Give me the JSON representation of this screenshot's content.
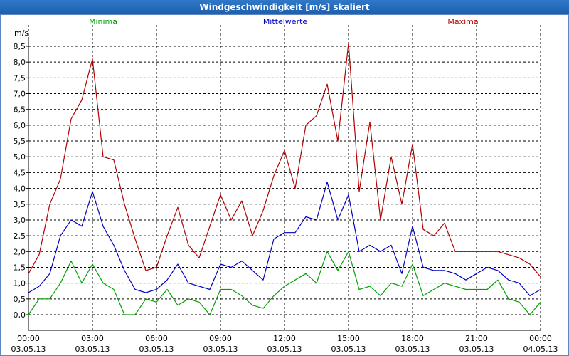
{
  "window": {
    "title": "Windgeschwindigkeit [m/s] skaliert"
  },
  "colors": {
    "minima": "#00a000",
    "mittelwerte": "#0000c0",
    "maxima": "#b00000",
    "grid": "#000000"
  },
  "chart_data": {
    "type": "line",
    "title": "Windgeschwindigkeit [m/s] skaliert",
    "ylabel": "m/s",
    "xlabel": "",
    "ylim": [
      0,
      8.5
    ],
    "yticks": [
      "0,0",
      "0,5",
      "1,0",
      "1,5",
      "2,0",
      "2,5",
      "3,0",
      "3,5",
      "4,0",
      "4,5",
      "5,0",
      "5,5",
      "6,0",
      "6,5",
      "7,0",
      "7,5",
      "8,0",
      "8,5"
    ],
    "xticks": [
      {
        "time": "00:00",
        "date": "03.05.13"
      },
      {
        "time": "03:00",
        "date": "03.05.13"
      },
      {
        "time": "06:00",
        "date": "03.05.13"
      },
      {
        "time": "09:00",
        "date": "03.05.13"
      },
      {
        "time": "12:00",
        "date": "03.05.13"
      },
      {
        "time": "15:00",
        "date": "03.05.13"
      },
      {
        "time": "18:00",
        "date": "03.05.13"
      },
      {
        "time": "21:00",
        "date": "03.05.13"
      },
      {
        "time": "00:00",
        "date": "04.05.13"
      }
    ],
    "grid": true,
    "legend_position": "top",
    "series": [
      {
        "name": "Minima",
        "x": [
          "00:00",
          "00:30",
          "01:00",
          "01:30",
          "02:00",
          "02:30",
          "03:00",
          "03:30",
          "04:00",
          "04:30",
          "05:00",
          "05:30",
          "06:00",
          "06:30",
          "07:00",
          "07:30",
          "08:00",
          "08:30",
          "09:00",
          "09:30",
          "10:00",
          "10:30",
          "11:00",
          "11:30",
          "12:00",
          "12:30",
          "13:00",
          "13:30",
          "14:00",
          "14:30",
          "15:00",
          "15:30",
          "16:00",
          "16:30",
          "17:00",
          "17:30",
          "18:00",
          "18:30",
          "19:00",
          "19:30",
          "20:00",
          "20:30",
          "21:00",
          "21:30",
          "22:00",
          "22:30",
          "23:00",
          "23:30",
          "24:00"
        ],
        "values": [
          0.0,
          0.5,
          0.5,
          1.0,
          1.7,
          1.0,
          1.6,
          1.0,
          0.8,
          0.0,
          0.0,
          0.5,
          0.4,
          0.8,
          0.3,
          0.5,
          0.4,
          0.0,
          0.8,
          0.8,
          0.6,
          0.3,
          0.2,
          0.6,
          0.9,
          1.1,
          1.3,
          1.0,
          2.0,
          1.4,
          2.0,
          0.8,
          0.9,
          0.6,
          1.0,
          0.9,
          1.6,
          0.6,
          0.8,
          1.0,
          0.9,
          0.8,
          0.8,
          0.8,
          1.1,
          0.5,
          0.4,
          0.0,
          0.4
        ]
      },
      {
        "name": "Mittelwerte",
        "x": [
          "00:00",
          "00:30",
          "01:00",
          "01:30",
          "02:00",
          "02:30",
          "03:00",
          "03:30",
          "04:00",
          "04:30",
          "05:00",
          "05:30",
          "06:00",
          "06:30",
          "07:00",
          "07:30",
          "08:00",
          "08:30",
          "09:00",
          "09:30",
          "10:00",
          "10:30",
          "11:00",
          "11:30",
          "12:00",
          "12:30",
          "13:00",
          "13:30",
          "14:00",
          "14:30",
          "15:00",
          "15:30",
          "16:00",
          "16:30",
          "17:00",
          "17:30",
          "18:00",
          "18:30",
          "19:00",
          "19:30",
          "20:00",
          "20:30",
          "21:00",
          "21:30",
          "22:00",
          "22:30",
          "23:00",
          "23:30",
          "24:00"
        ],
        "values": [
          0.7,
          0.9,
          1.3,
          2.5,
          3.0,
          2.8,
          3.9,
          2.8,
          2.2,
          1.4,
          0.8,
          0.7,
          0.8,
          1.1,
          1.6,
          1.0,
          0.9,
          0.8,
          1.6,
          1.5,
          1.7,
          1.4,
          1.1,
          2.4,
          2.6,
          2.6,
          3.1,
          3.0,
          4.2,
          3.0,
          3.8,
          2.0,
          2.2,
          2.0,
          2.2,
          1.3,
          2.8,
          1.5,
          1.4,
          1.4,
          1.3,
          1.1,
          1.3,
          1.5,
          1.4,
          1.1,
          1.0,
          0.6,
          0.8
        ]
      },
      {
        "name": "Maxima",
        "x": [
          "00:00",
          "00:30",
          "01:00",
          "01:30",
          "02:00",
          "02:30",
          "03:00",
          "03:30",
          "04:00",
          "04:30",
          "05:00",
          "05:30",
          "06:00",
          "06:30",
          "07:00",
          "07:30",
          "08:00",
          "08:30",
          "09:00",
          "09:30",
          "10:00",
          "10:30",
          "11:00",
          "11:30",
          "12:00",
          "12:30",
          "13:00",
          "13:30",
          "14:00",
          "14:30",
          "15:00",
          "15:30",
          "16:00",
          "16:30",
          "17:00",
          "17:30",
          "18:00",
          "18:30",
          "19:00",
          "19:30",
          "20:00",
          "20:30",
          "21:00",
          "21:30",
          "22:00",
          "22:30",
          "23:00",
          "23:30",
          "24:00"
        ],
        "values": [
          1.3,
          1.9,
          3.5,
          4.3,
          6.2,
          6.8,
          8.1,
          5.0,
          4.9,
          3.5,
          2.4,
          1.4,
          1.5,
          2.5,
          3.4,
          2.2,
          1.8,
          2.8,
          3.8,
          3.0,
          3.6,
          2.5,
          3.3,
          4.4,
          5.2,
          4.0,
          6.0,
          6.3,
          7.3,
          5.5,
          8.6,
          3.9,
          6.1,
          3.0,
          5.0,
          3.5,
          5.4,
          2.7,
          2.5,
          2.9,
          2.0,
          2.0,
          2.0,
          2.0,
          2.0,
          1.9,
          1.8,
          1.6,
          1.2
        ]
      }
    ]
  }
}
